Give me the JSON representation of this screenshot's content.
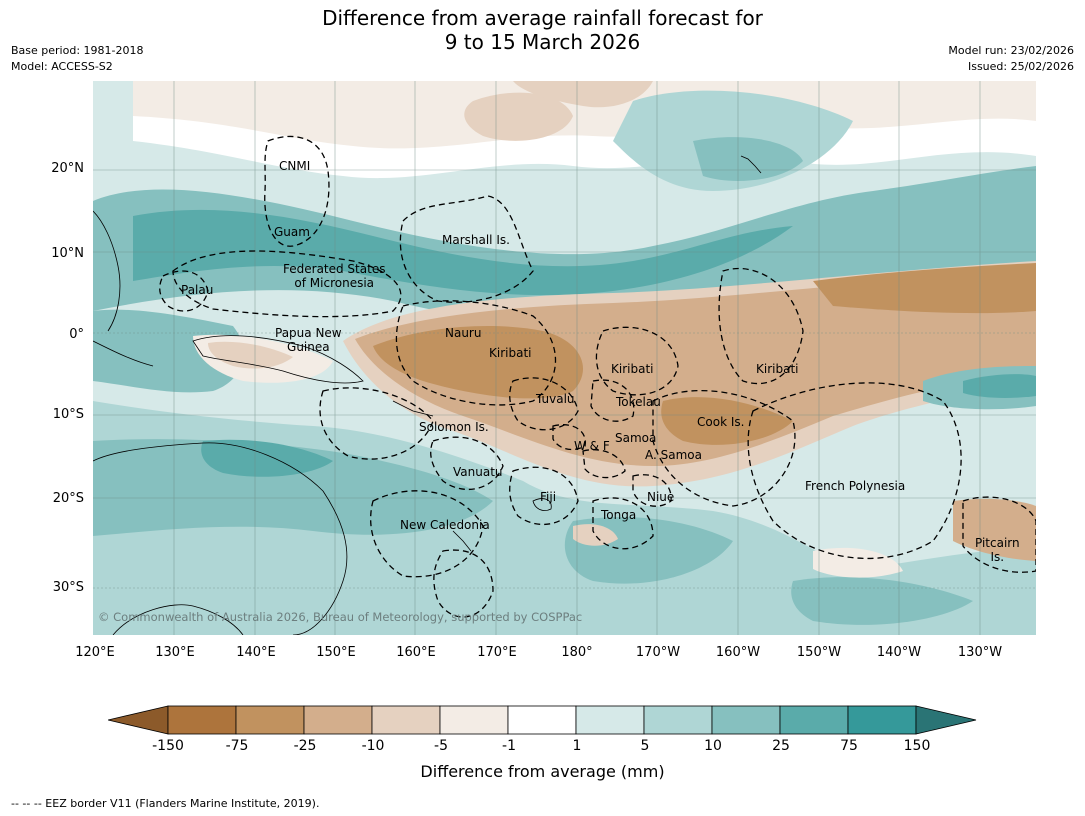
{
  "header": {
    "title_line1": "Difference from average rainfall forecast for",
    "title_line2": "9 to 15 March 2026",
    "base_period": "Base period: 1981-2018",
    "model": "Model: ACCESS-S2",
    "model_run": "Model run: 23/02/2026",
    "issued": "Issued: 25/02/2026"
  },
  "map": {
    "lat_labels": [
      "20°N",
      "10°N",
      "0°",
      "10°S",
      "20°S",
      "30°S"
    ],
    "lon_labels": [
      "120°E",
      "130°E",
      "140°E",
      "150°E",
      "160°E",
      "170°E",
      "180°",
      "170°W",
      "160°W",
      "150°W",
      "140°W",
      "130°W"
    ],
    "regions": {
      "cnmi": "CNMI",
      "guam": "Guam",
      "marshall": "Marshall Is.",
      "fsm_line1": "Federated States",
      "fsm_line2": "of Micronesia",
      "palau": "Palau",
      "png_line1": "Papua New",
      "png_line2": "Guinea",
      "nauru": "Nauru",
      "kiribati_west": "Kiribati",
      "kiribati_central": "Kiribati",
      "kiribati_east": "Kiribati",
      "tuvalu": "Tuvalu",
      "tokelau": "Tokelau",
      "solomon": "Solomon Is.",
      "cook": "Cook Is.",
      "wf": "W & F",
      "samoa": "Samoa",
      "asamoa": "A. Samoa",
      "vanuatu": "Vanuatu",
      "fiji": "Fiji",
      "niue": "Niue",
      "french_polynesia": "French Polynesia",
      "tonga": "Tonga",
      "new_caledonia": "New Caledonia",
      "pitcairn_line1": "Pitcairn",
      "pitcairn_line2": "Is."
    },
    "copyright": "© Commonwealth of Australia 2026, Bureau of Meteorology, supported by COSPPac"
  },
  "colorbar": {
    "colors": [
      "#8c5a2a",
      "#ad743c",
      "#c1925f",
      "#d3ae8c",
      "#e5d1c0",
      "#f3ece5",
      "#ffffff",
      "#d6e9e8",
      "#afd6d5",
      "#86c0bf",
      "#5aabaa",
      "#35999a",
      "#2a7475"
    ],
    "ticks": [
      "-150",
      "-75",
      "-25",
      "-10",
      "-5",
      "-1",
      "1",
      "5",
      "10",
      "25",
      "75",
      "150"
    ],
    "label": "Difference from average (mm)"
  },
  "footnote": "--  --  -- EEZ border V11 (Flanders Marine Institute, 2019)."
}
